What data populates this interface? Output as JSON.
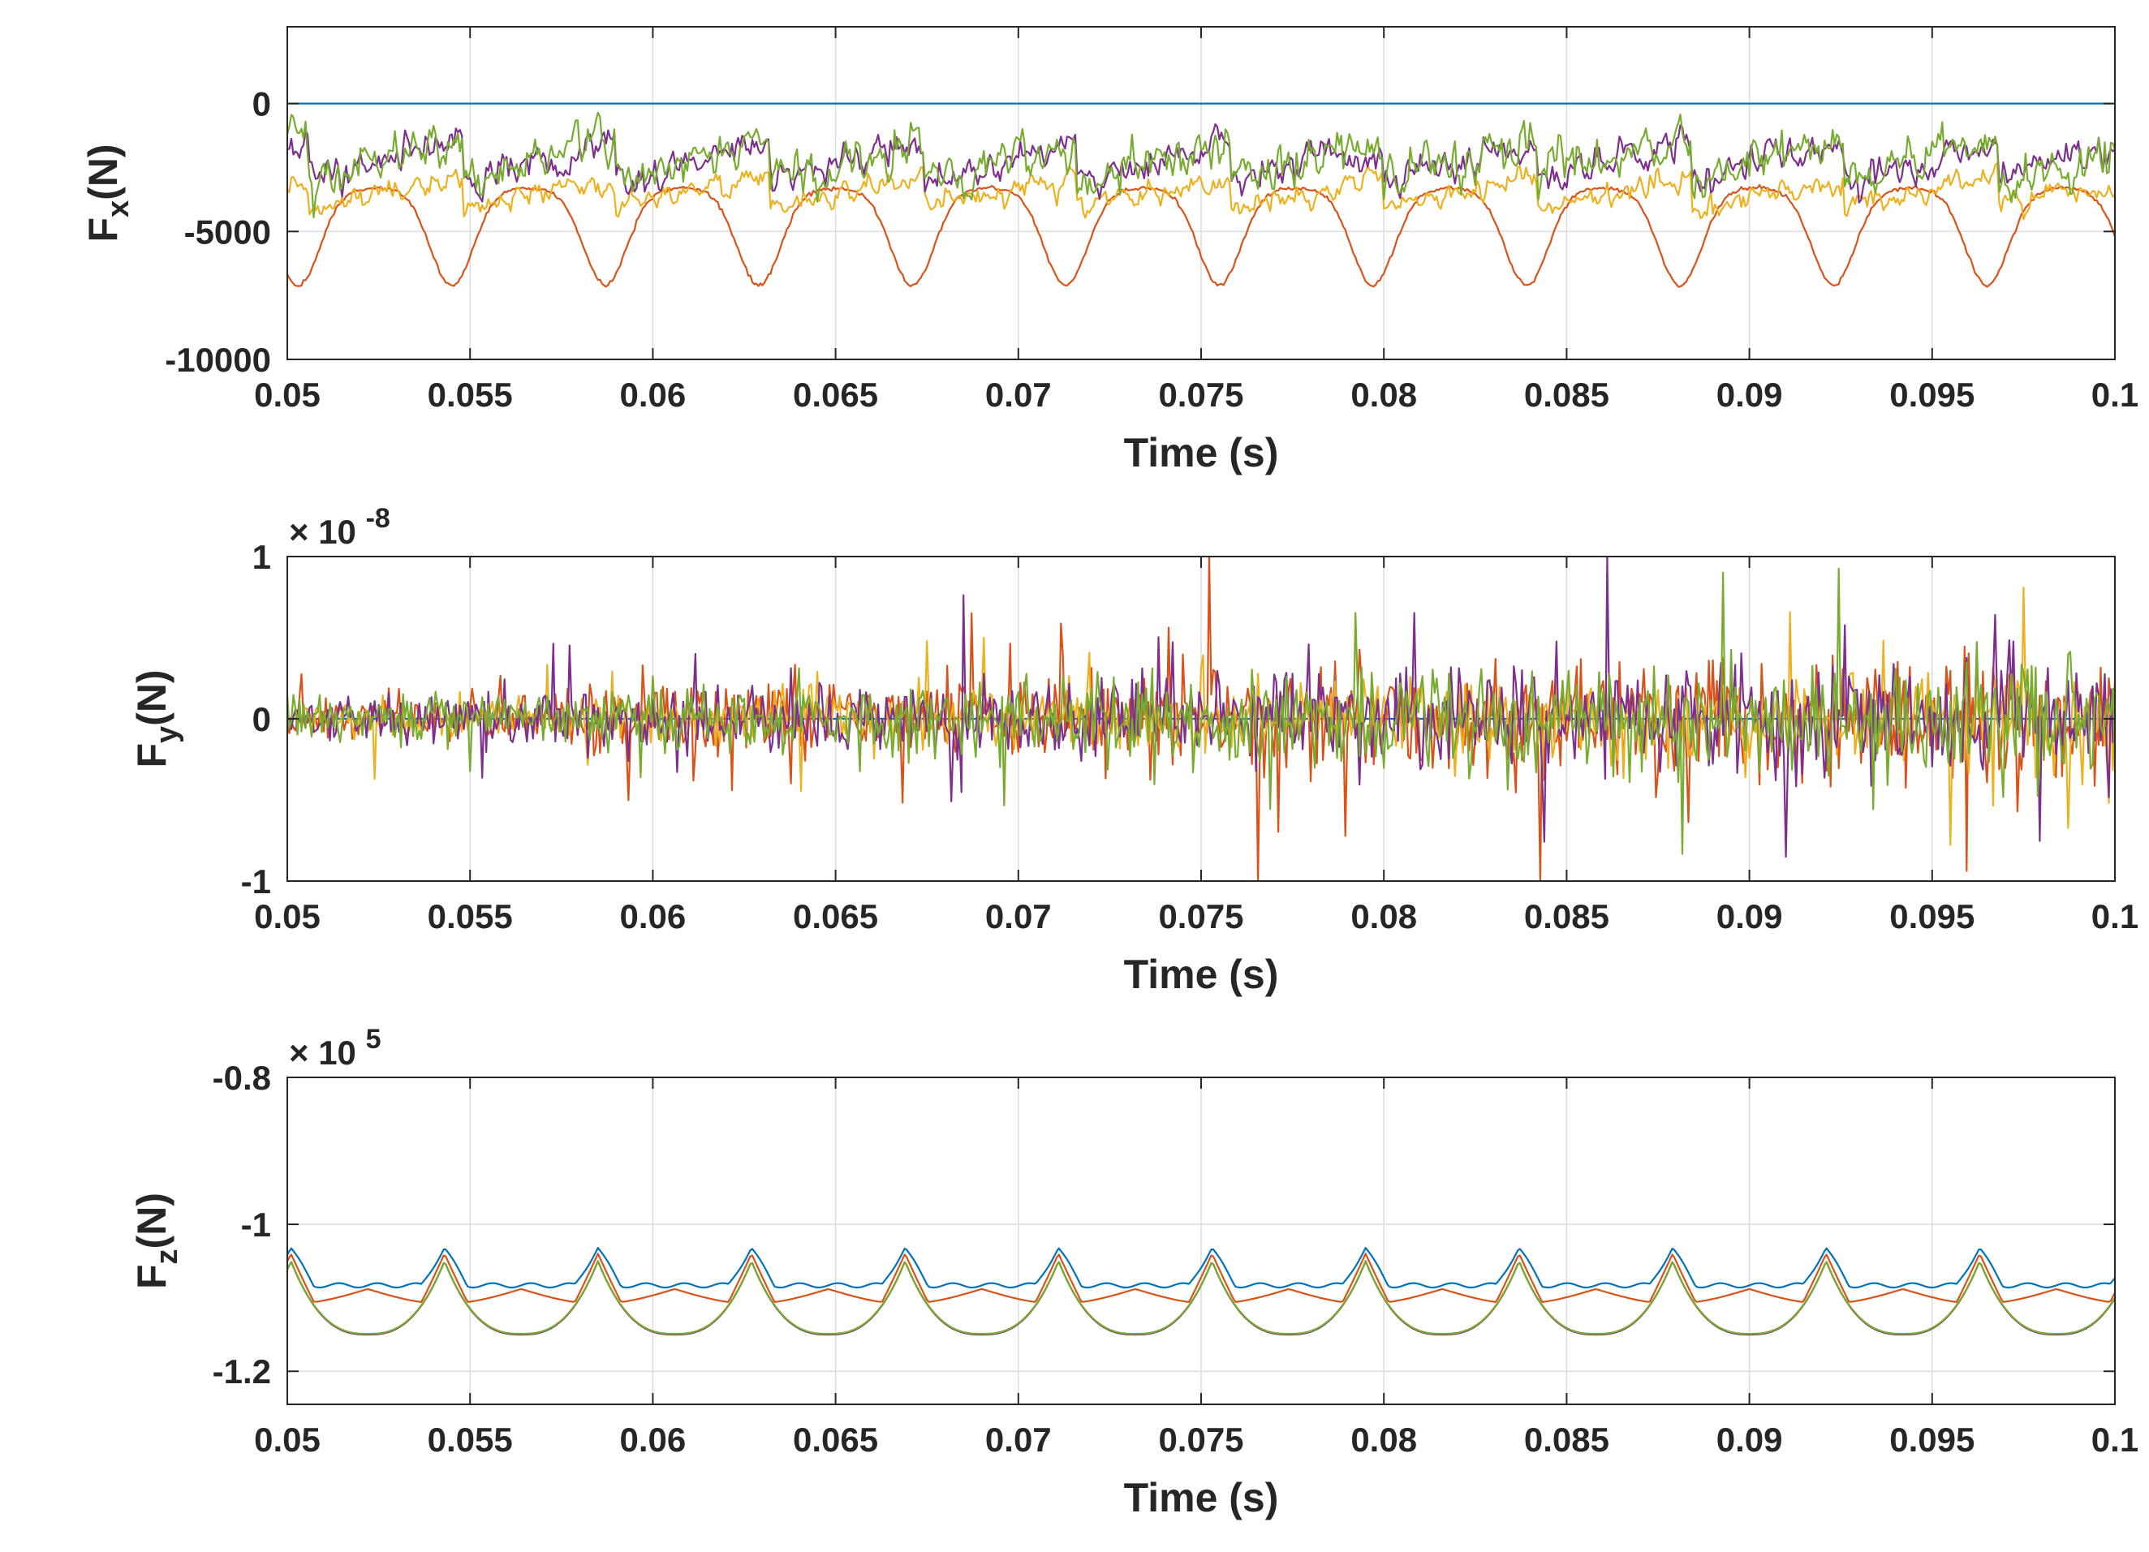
{
  "figure": {
    "colors": {
      "blue": "#0072BD",
      "red": "#D95319",
      "yellow": "#EDB120",
      "purple": "#7E2F8E",
      "green": "#77AC30",
      "grid": "#DCDCDC",
      "axis": "#262626"
    }
  },
  "chart_data": [
    {
      "type": "line",
      "id": "fx",
      "title": "",
      "xlabel": "Time (s)",
      "ylabel_main": "F",
      "ylabel_sub": "x",
      "ylabel_unit": "(N)",
      "multiplier_base": "",
      "multiplier_exp": "",
      "xlim": [
        0.05,
        0.1
      ],
      "ylim": [
        -10000,
        3000
      ],
      "xticks": [
        0.05,
        0.055,
        0.06,
        0.065,
        0.07,
        0.075,
        0.08,
        0.085,
        0.09,
        0.095,
        0.1
      ],
      "xtick_labels": [
        "0.05",
        "0.055",
        "0.06",
        "0.065",
        "0.07",
        "0.075",
        "0.08",
        "0.085",
        "0.09",
        "0.095",
        "0.1"
      ],
      "yticks": [
        -10000,
        -5000,
        0
      ],
      "ytick_labels": [
        "-10000",
        "-5000",
        "0"
      ],
      "grid": true,
      "period_s": 0.0042,
      "series": [
        {
          "name": "blue",
          "color": "#0072BD",
          "pattern": "constant",
          "mean": 0,
          "amp": 0,
          "noise": 0,
          "phase": 0,
          "seed": 1
        },
        {
          "name": "red",
          "color": "#D95319",
          "pattern": "dip",
          "mean": -3300,
          "amp": 3800,
          "noise": 40,
          "phase": 0.0024,
          "seed": 2
        },
        {
          "name": "yellow",
          "color": "#EDB120",
          "pattern": "sawtooth",
          "mean": -3500,
          "amp": 1200,
          "noise": 260,
          "phase": 0.0006,
          "seed": 3
        },
        {
          "name": "purple",
          "color": "#7E2F8E",
          "pattern": "sawtooth",
          "mean": -2300,
          "amp": 1400,
          "noise": 380,
          "phase": 0.0006,
          "seed": 4
        },
        {
          "name": "green",
          "color": "#77AC30",
          "pattern": "sawtooth",
          "mean": -2250,
          "amp": 1500,
          "noise": 480,
          "phase": 0.0006,
          "seed": 5
        }
      ]
    },
    {
      "type": "line",
      "id": "fy",
      "title": "",
      "xlabel": "Time (s)",
      "ylabel_main": "F",
      "ylabel_sub": "y",
      "ylabel_unit": "(N)",
      "multiplier_base": "× 10",
      "multiplier_exp": "-8",
      "xlim": [
        0.05,
        0.1
      ],
      "ylim": [
        -1,
        1
      ],
      "xticks": [
        0.05,
        0.055,
        0.06,
        0.065,
        0.07,
        0.075,
        0.08,
        0.085,
        0.09,
        0.095,
        0.1
      ],
      "xtick_labels": [
        "0.05",
        "0.055",
        "0.06",
        "0.065",
        "0.07",
        "0.075",
        "0.08",
        "0.085",
        "0.09",
        "0.095",
        "0.1"
      ],
      "yticks": [
        -1,
        0,
        1
      ],
      "ytick_labels": [
        "-1",
        "0",
        "1"
      ],
      "grid": true,
      "period_s": 0.0042,
      "series": [
        {
          "name": "blue",
          "color": "#0072BD",
          "pattern": "constant",
          "mean": 0,
          "amp": 0,
          "noise": 0,
          "phase": 0,
          "seed": 11
        },
        {
          "name": "red",
          "color": "#D95319",
          "pattern": "noise",
          "mean": 0,
          "amp": 0,
          "noise": 0.26,
          "phase": 0,
          "seed": 12
        },
        {
          "name": "yellow",
          "color": "#EDB120",
          "pattern": "noise",
          "mean": 0,
          "amp": 0,
          "noise": 0.17,
          "phase": 0,
          "seed": 13
        },
        {
          "name": "purple",
          "color": "#7E2F8E",
          "pattern": "noise",
          "mean": 0,
          "amp": 0,
          "noise": 0.22,
          "phase": 0,
          "seed": 14
        },
        {
          "name": "green",
          "color": "#77AC30",
          "pattern": "noise",
          "mean": 0,
          "amp": 0,
          "noise": 0.22,
          "phase": 0,
          "seed": 15
        }
      ]
    },
    {
      "type": "line",
      "id": "fz",
      "title": "",
      "xlabel": "Time (s)",
      "ylabel_main": "F",
      "ylabel_sub": "z",
      "ylabel_unit": "(N)",
      "multiplier_base": "× 10",
      "multiplier_exp": "5",
      "xlim": [
        0.05,
        0.1
      ],
      "ylim": [
        -1.245,
        -0.8
      ],
      "xticks": [
        0.05,
        0.055,
        0.06,
        0.065,
        0.07,
        0.075,
        0.08,
        0.085,
        0.09,
        0.095,
        0.1
      ],
      "xtick_labels": [
        "0.05",
        "0.055",
        "0.06",
        "0.065",
        "0.07",
        "0.075",
        "0.08",
        "0.085",
        "0.09",
        "0.095",
        "0.1"
      ],
      "yticks": [
        -1.2,
        -1,
        -0.8
      ],
      "ytick_labels": [
        "-1.2",
        "-1",
        "-0.8"
      ],
      "grid": true,
      "period_s": 0.0042,
      "series": [
        {
          "name": "blue",
          "color": "#0072BD",
          "pattern": "peakflat",
          "mean": -1.083,
          "amp": 0.051,
          "noise": 0.003,
          "phase": 0.0022,
          "seed": 21
        },
        {
          "name": "red",
          "color": "#D95319",
          "pattern": "peakdip",
          "mean": -1.1,
          "amp": 0.048,
          "noise": 0.0,
          "phase": 0.0022,
          "seed": 22
        },
        {
          "name": "yellow",
          "color": "#EDB120",
          "pattern": "peakcusp",
          "mean": -1.15,
          "amp": 0.1,
          "noise": 0.0,
          "phase": 0.0022,
          "seed": 23
        },
        {
          "name": "purple",
          "color": "#7E2F8E",
          "pattern": "peakcusp",
          "mean": -1.15,
          "amp": 0.1,
          "noise": 0.0,
          "phase": 0.0022,
          "seed": 24
        },
        {
          "name": "green",
          "color": "#77AC30",
          "pattern": "peakcusp",
          "mean": -1.149,
          "amp": 0.099,
          "noise": 0.0,
          "phase": 0.0022,
          "seed": 25
        }
      ]
    }
  ]
}
